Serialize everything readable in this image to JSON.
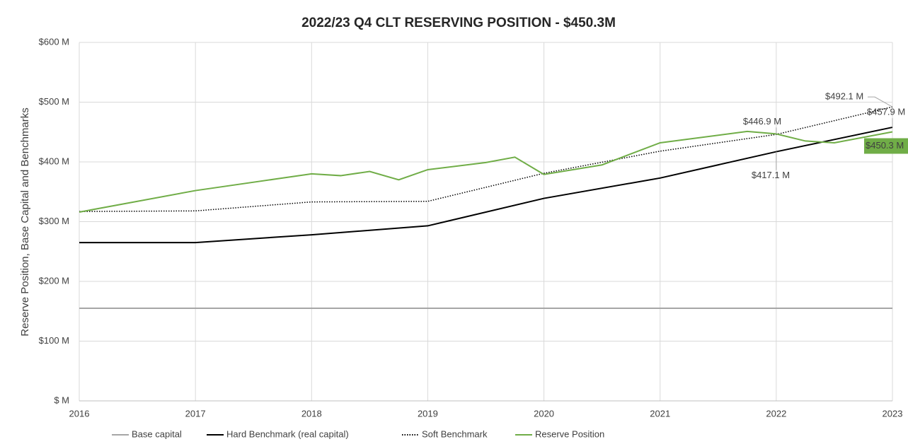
{
  "chart_data": {
    "type": "line",
    "title": "2022/23 Q4 CLT RESERVING POSITION - $450.3M",
    "y_label": "Reserve Position, Base Capital and Benchmarks",
    "xlim": [
      2016,
      2023
    ],
    "xticks": [
      2016,
      2017,
      2018,
      2019,
      2020,
      2021,
      2022,
      2023
    ],
    "ylim": [
      0,
      600
    ],
    "yticks": [
      {
        "value": 0,
        "label": "$ M"
      },
      {
        "value": 100,
        "label": "$100 M"
      },
      {
        "value": 200,
        "label": "$200 M"
      },
      {
        "value": 300,
        "label": "$300 M"
      },
      {
        "value": 400,
        "label": "$400 M"
      },
      {
        "value": 500,
        "label": "$500 M"
      },
      {
        "value": 600,
        "label": "$600 M"
      }
    ],
    "grid": true,
    "legend": "bottom",
    "series": [
      {
        "name": "Base capital",
        "color": "#a6a6a6",
        "style": "solid",
        "x": [
          2016,
          2023
        ],
        "values": [
          155,
          155
        ]
      },
      {
        "name": "Hard Benchmark (real capital)",
        "color": "#000000",
        "style": "solid",
        "x": [
          2016,
          2017,
          2018,
          2019,
          2020,
          2021,
          2022,
          2023
        ],
        "values": [
          265,
          265,
          278,
          293,
          339,
          373,
          417.1,
          457.9
        ],
        "value_labels": [
          null,
          null,
          null,
          null,
          null,
          null,
          "$417.1 M",
          "$457.9 M"
        ]
      },
      {
        "name": "Soft Benchmark",
        "color": "#000000",
        "style": "dotted",
        "x": [
          2016,
          2017,
          2018,
          2019,
          2020,
          2021,
          2022,
          2023
        ],
        "values": [
          317,
          318,
          333,
          334,
          381,
          418,
          446,
          492.1
        ],
        "value_labels": [
          null,
          null,
          null,
          null,
          null,
          null,
          null,
          "$492.1 M"
        ]
      },
      {
        "name": "Reserve Position",
        "color": "#70ad47",
        "style": "solid",
        "x": [
          2016,
          2017,
          2018,
          2018.25,
          2018.5,
          2018.75,
          2019,
          2019.5,
          2019.75,
          2020,
          2020.5,
          2021,
          2021.75,
          2022,
          2022.25,
          2022.5,
          2023
        ],
        "values": [
          316,
          352,
          380,
          377,
          384,
          370,
          387,
          399,
          408,
          379,
          395,
          432,
          451,
          446.9,
          435,
          432,
          450.3
        ],
        "value_labels": [
          null,
          null,
          null,
          null,
          null,
          null,
          null,
          null,
          null,
          null,
          null,
          null,
          null,
          "$446.9 M",
          null,
          null,
          "$450.3 M"
        ]
      }
    ]
  }
}
